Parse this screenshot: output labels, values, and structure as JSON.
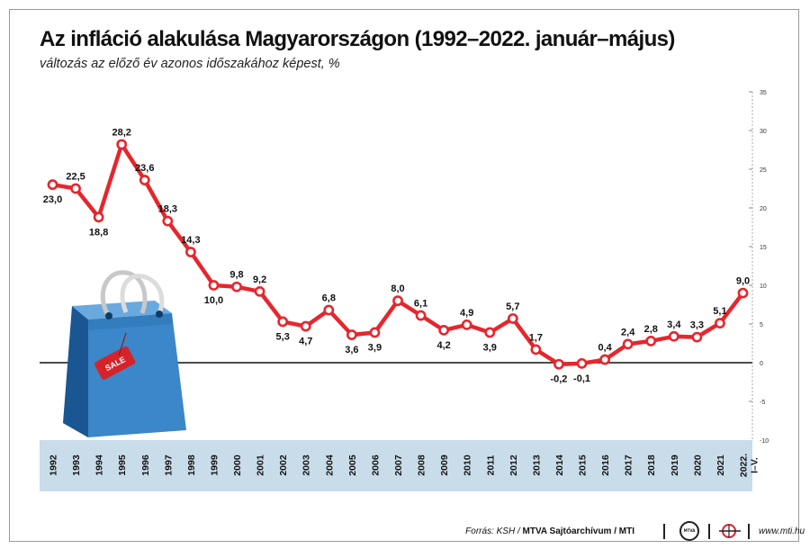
{
  "header": {
    "title": "Az infláció alakulása Magyarországon (1992–2022. január–május)",
    "subtitle": "változás az előző év azonos időszakához képest, %"
  },
  "footer": {
    "source_prefix": "Forrás: KSH /",
    "source_bold": "MTVA Sajtóarchívum / MTI",
    "mtva_logo_text": "MTVA",
    "website": "www.mti.hu"
  },
  "colors": {
    "line": "#e6262d",
    "axis_band": "#c9dcea",
    "zero_line": "#111111",
    "grid_dash": "#6f6f6f",
    "text": "#111111"
  },
  "illustration": {
    "icon": "shopping-bag-icon",
    "tag_text": "SALE"
  },
  "chart_data": {
    "type": "line",
    "title": "Az infláció alakulása Magyarországon (1992–2022. január–május)",
    "subtitle": "változás az előző év azonos időszakához képest, %",
    "categories": [
      "1992",
      "1993",
      "1994",
      "1995",
      "1996",
      "1997",
      "1998",
      "1999",
      "2000",
      "2001",
      "2002",
      "2003",
      "2004",
      "2005",
      "2006",
      "2007",
      "2008",
      "2009",
      "2010",
      "2011",
      "2012",
      "2013",
      "2014",
      "2015",
      "2016",
      "2017",
      "2018",
      "2019",
      "2020",
      "2021",
      "2022. I–V."
    ],
    "values": [
      23.0,
      22.5,
      18.8,
      28.2,
      23.6,
      18.3,
      14.3,
      10.0,
      9.8,
      9.2,
      5.3,
      4.7,
      6.8,
      3.6,
      3.9,
      8.0,
      6.1,
      4.2,
      4.9,
      3.9,
      5.7,
      1.7,
      -0.2,
      -0.1,
      0.4,
      2.4,
      2.8,
      3.4,
      3.3,
      5.1,
      9.0
    ],
    "data_labels": [
      "23,0",
      "22,5",
      "18,8",
      "28,2",
      "23,6",
      "18,3",
      "14,3",
      "10,0",
      "9,8",
      "9,2",
      "5,3",
      "4,7",
      "6,8",
      "3,6",
      "3,9",
      "8,0",
      "6,1",
      "4,2",
      "4,9",
      "3,9",
      "5,7",
      "1,7",
      "-0,2",
      "-0,1",
      "0,4",
      "2,4",
      "2,8",
      "3,4",
      "3,3",
      "5,1",
      "9,0"
    ],
    "label_position": [
      "below",
      "above",
      "below",
      "above",
      "above",
      "above",
      "above",
      "below",
      "above",
      "above",
      "below",
      "below",
      "above",
      "below",
      "below",
      "above",
      "above",
      "below",
      "above",
      "below",
      "above",
      "above",
      "below",
      "below",
      "above",
      "above",
      "above",
      "above",
      "above",
      "above",
      "above"
    ],
    "ylim": [
      -10,
      35
    ],
    "yticks": [
      -10,
      -5,
      0,
      5,
      10,
      15,
      20,
      25,
      30,
      35
    ],
    "ytick_labels": [
      "-10",
      "-5",
      "0",
      "5",
      "10",
      "15",
      "20",
      "25",
      "30",
      "35"
    ],
    "y_axis_side": "right",
    "grid": "horizontal dashed",
    "xlabel": "",
    "ylabel": ""
  }
}
